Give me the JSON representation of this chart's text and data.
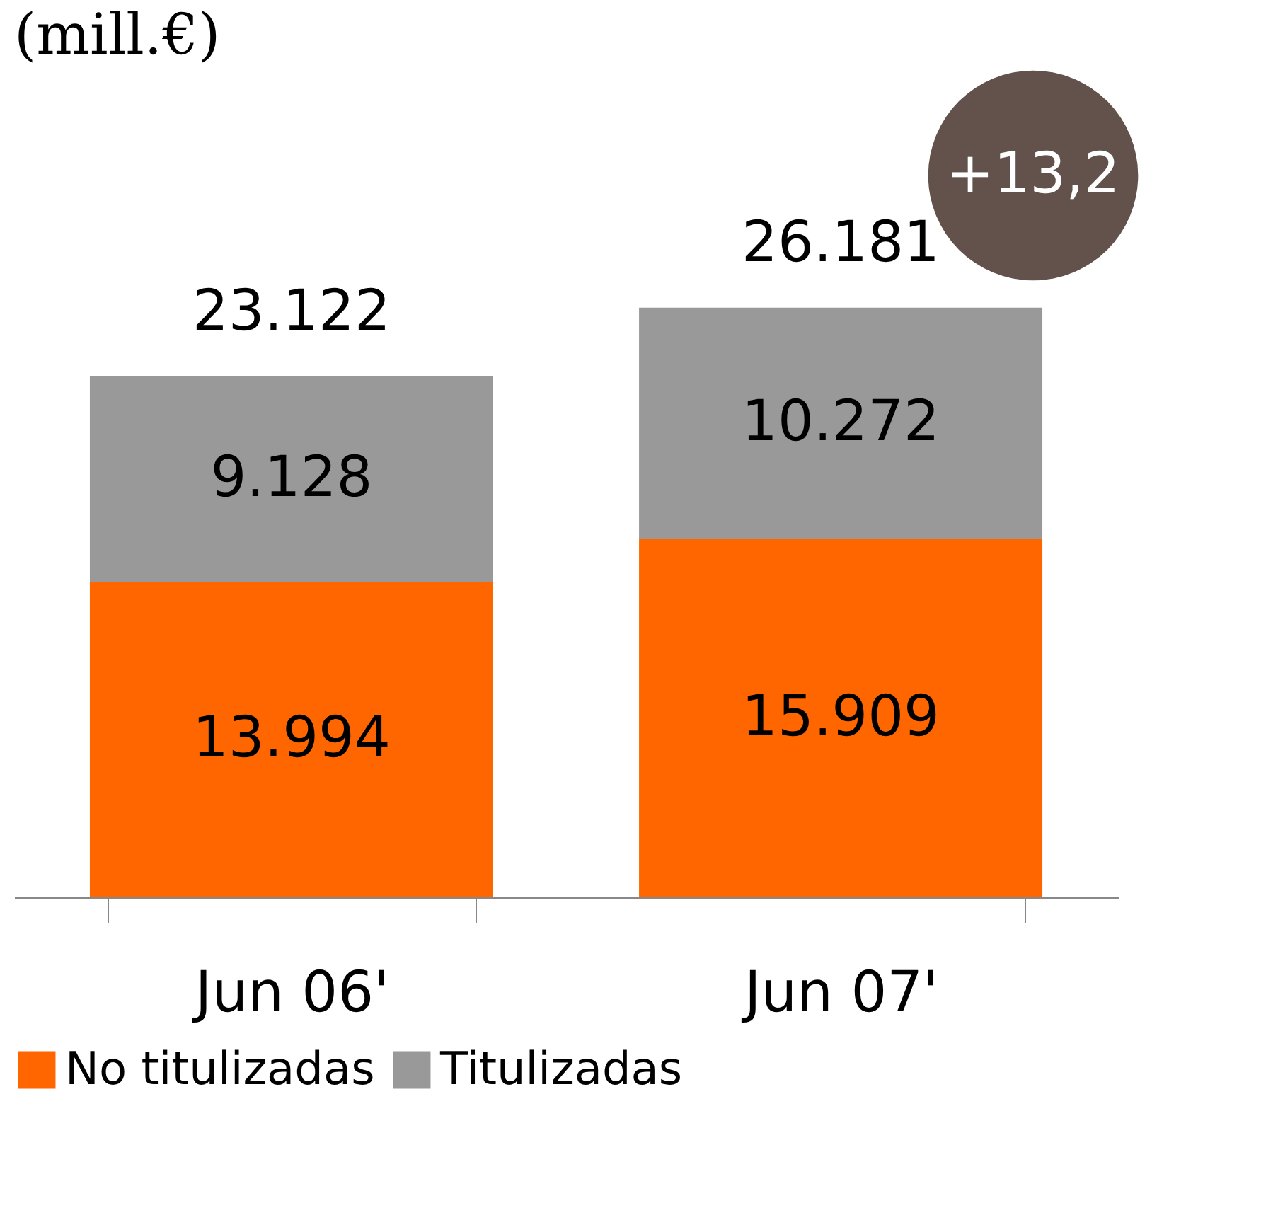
{
  "chart_data": {
    "type": "bar",
    "title": "(mill.€)",
    "stacked": true,
    "categories": [
      "Jun 06'",
      "Jun 07'"
    ],
    "series": [
      {
        "name": "No titulizadas",
        "color": "#ff6600",
        "values": [
          13994,
          15909
        ],
        "value_labels": [
          "13.994",
          "15.909"
        ]
      },
      {
        "name": "Titulizadas",
        "color": "#999999",
        "values": [
          9128,
          10272
        ],
        "value_labels": [
          "9.128",
          "10.272"
        ]
      }
    ],
    "totals": [
      "23.122",
      "26.181"
    ],
    "annotations": [
      "+13,2"
    ],
    "legend": "bottom",
    "grid": false,
    "tick_labels": "x"
  }
}
